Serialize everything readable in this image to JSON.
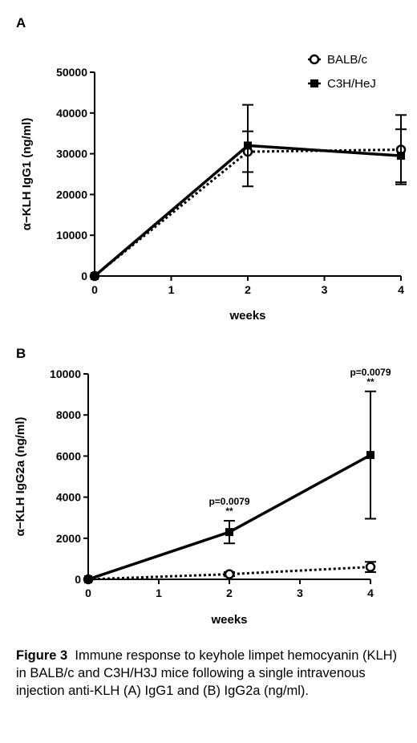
{
  "chart_data": [
    {
      "type": "line",
      "panel_label": "A",
      "title": "",
      "xlabel": "weeks",
      "ylabel": "α−KLH IgG1 (ng/ml)",
      "xlim": [
        0,
        4
      ],
      "ylim": [
        0,
        50000
      ],
      "xticks": [
        0,
        1,
        2,
        3,
        4
      ],
      "yticks": [
        0,
        10000,
        20000,
        30000,
        40000,
        50000
      ],
      "legend_position": "top-right",
      "grid": false,
      "series": [
        {
          "name": "BALB/c",
          "marker": "open-circle",
          "line_style": "dotted",
          "x": [
            0,
            2,
            4
          ],
          "y": [
            0,
            30500,
            31000
          ],
          "error": [
            0,
            5000,
            8500
          ]
        },
        {
          "name": "C3H/HeJ",
          "marker": "filled-square",
          "line_style": "solid",
          "x": [
            0,
            2,
            4
          ],
          "y": [
            0,
            32000,
            29500
          ],
          "error": [
            0,
            10000,
            6500
          ]
        }
      ],
      "annotations": []
    },
    {
      "type": "line",
      "panel_label": "B",
      "title": "",
      "xlabel": "weeks",
      "ylabel": "α−KLH IgG2a (ng/ml)",
      "xlim": [
        0,
        4
      ],
      "ylim": [
        0,
        10000
      ],
      "xticks": [
        0,
        1,
        2,
        3,
        4
      ],
      "yticks": [
        0,
        2000,
        4000,
        6000,
        8000,
        10000
      ],
      "grid": false,
      "series": [
        {
          "name": "BALB/c",
          "marker": "open-circle",
          "line_style": "dotted",
          "x": [
            0,
            2,
            4
          ],
          "y": [
            0,
            250,
            600
          ],
          "error": [
            0,
            100,
            250
          ]
        },
        {
          "name": "C3H/HeJ",
          "marker": "filled-square",
          "line_style": "solid",
          "x": [
            0,
            2,
            4
          ],
          "y": [
            0,
            2300,
            6050
          ],
          "error": [
            0,
            550,
            3100
          ]
        }
      ],
      "annotations": [
        {
          "x": 2,
          "text": "p=0.0079",
          "stars": "**",
          "above_y": 2850
        },
        {
          "x": 4,
          "text": "p=0.0079",
          "stars": "**",
          "above_y": 9150
        }
      ]
    }
  ],
  "caption": {
    "label": "Figure 3",
    "text": "Immune response to keyhole limpet hemocyanin (KLH) in BALB/c and C3H/H3J mice following a single intravenous injection anti-KLH (A) IgG1 and (B) IgG2a (ng/ml)."
  }
}
